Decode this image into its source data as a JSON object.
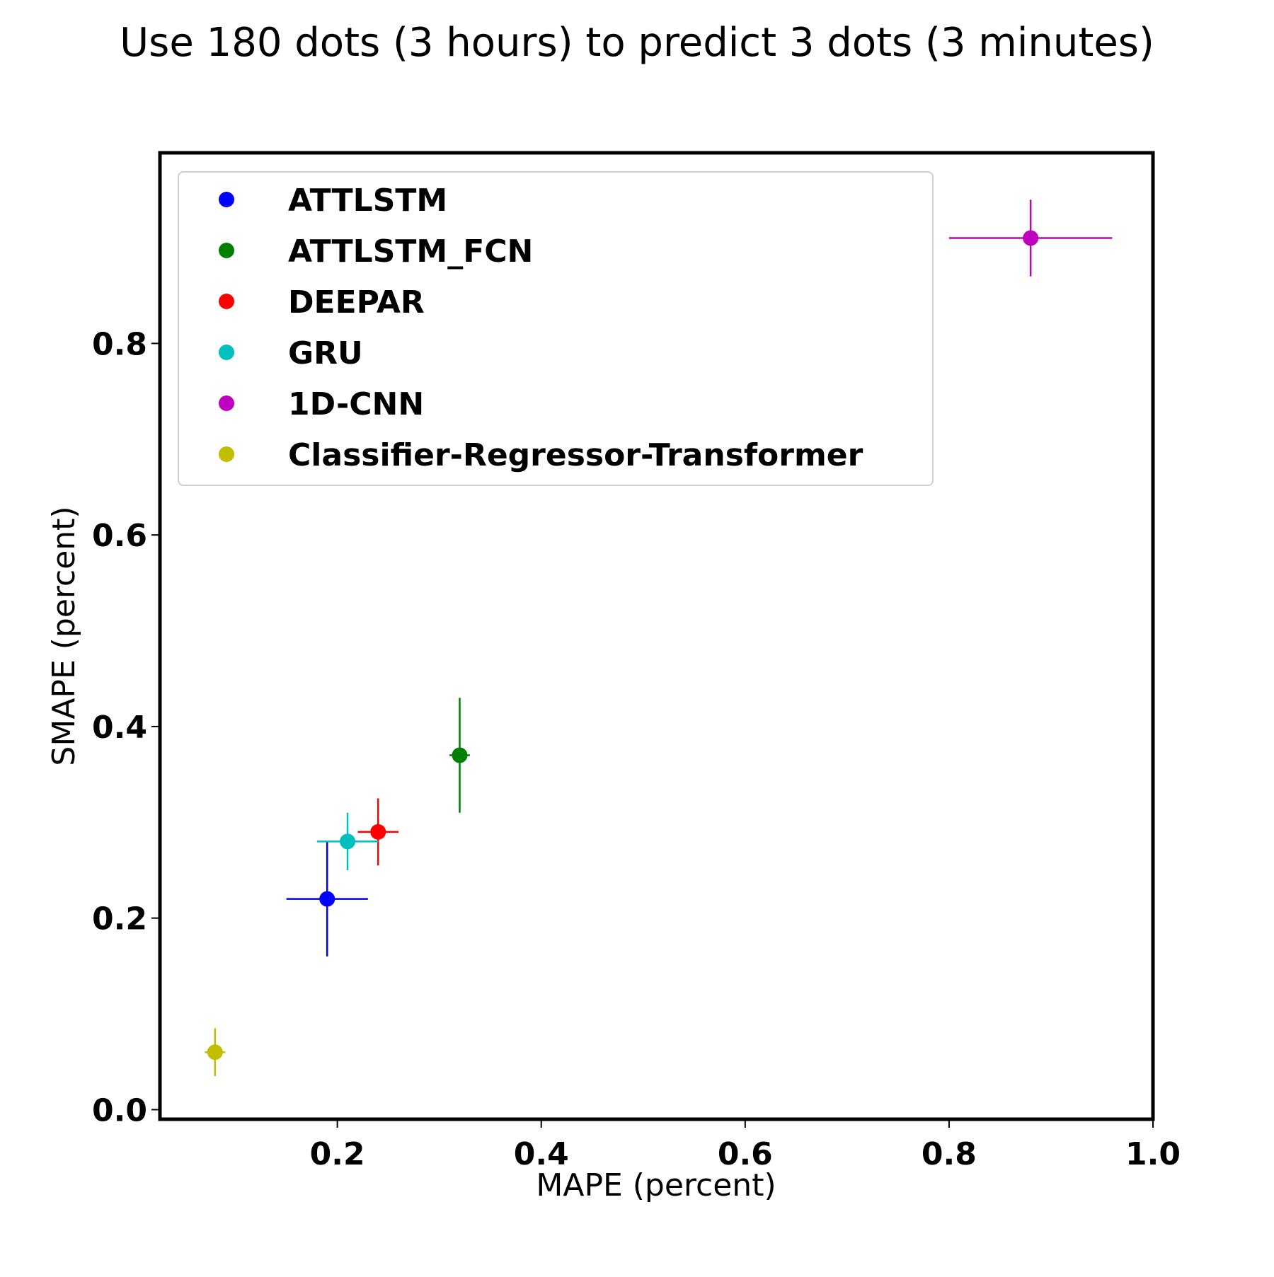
{
  "chart_data": {
    "type": "scatter",
    "title": "Use 180 dots (3 hours) to predict 3 dots (3 minutes)",
    "xlabel": "MAPE (percent)",
    "ylabel": "SMAPE (percent)",
    "xlim": [
      0.026,
      1.0
    ],
    "ylim": [
      -0.01,
      0.999
    ],
    "xticks": [
      {
        "value": 0.2,
        "label": "0.2"
      },
      {
        "value": 0.4,
        "label": "0.4"
      },
      {
        "value": 0.6,
        "label": "0.6"
      },
      {
        "value": 0.8,
        "label": "0.8"
      },
      {
        "value": 1.0,
        "label": "1.0"
      }
    ],
    "yticks": [
      {
        "value": 0.0,
        "label": "0.0"
      },
      {
        "value": 0.2,
        "label": "0.2"
      },
      {
        "value": 0.4,
        "label": "0.4"
      },
      {
        "value": 0.6,
        "label": "0.6"
      },
      {
        "value": 0.8,
        "label": "0.8"
      }
    ],
    "grid": false,
    "legend_position": "upper-left",
    "series": [
      {
        "name": "ATTLSTM",
        "color": "#0000ff",
        "x": 0.19,
        "y": 0.22,
        "xerr": [
          0.04,
          0.04
        ],
        "yerr": [
          0.06,
          0.06
        ]
      },
      {
        "name": "ATTLSTM_FCN",
        "color": "#008000",
        "x": 0.32,
        "y": 0.37,
        "xerr": [
          0.01,
          0.01
        ],
        "yerr": [
          0.06,
          0.06
        ]
      },
      {
        "name": "DEEPAR",
        "color": "#ff0000",
        "x": 0.24,
        "y": 0.29,
        "xerr": [
          0.02,
          0.02
        ],
        "yerr": [
          0.035,
          0.035
        ]
      },
      {
        "name": "GRU",
        "color": "#00bfbf",
        "x": 0.21,
        "y": 0.28,
        "xerr": [
          0.03,
          0.03
        ],
        "yerr": [
          0.03,
          0.03
        ]
      },
      {
        "name": "1D-CNN",
        "color": "#bf00bf",
        "x": 0.88,
        "y": 0.91,
        "xerr": [
          0.08,
          0.08
        ],
        "yerr": [
          0.04,
          0.04
        ]
      },
      {
        "name": "Classifier-Regressor-Transformer",
        "color": "#bfbf00",
        "x": 0.08,
        "y": 0.06,
        "xerr": [
          0.01,
          0.01
        ],
        "yerr": [
          0.025,
          0.025
        ]
      }
    ]
  }
}
